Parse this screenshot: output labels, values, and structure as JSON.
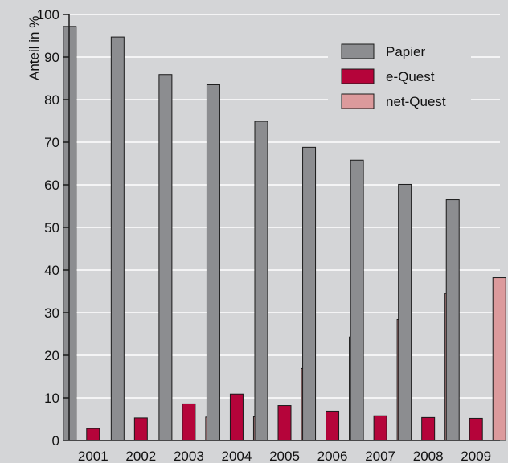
{
  "chart_data": {
    "type": "bar",
    "title": "",
    "xlabel": "",
    "ylabel": "Anteil in %",
    "ylim": [
      0,
      100
    ],
    "yticks": [
      0,
      10,
      20,
      30,
      40,
      50,
      60,
      70,
      80,
      90,
      100
    ],
    "grid": true,
    "legend_position": "top-right",
    "categories": [
      "2001",
      "2002",
      "2003",
      "2004",
      "2005",
      "2006",
      "2007",
      "2008",
      "2009"
    ],
    "series": [
      {
        "name": "Papier",
        "color": "#8c8d90",
        "values": [
          97.2,
          94.7,
          85.9,
          83.5,
          74.9,
          68.8,
          65.8,
          60.1,
          56.5
        ]
      },
      {
        "name": "e-Quest",
        "color": "#b5043a",
        "values": [
          2.8,
          5.3,
          8.6,
          10.9,
          8.2,
          6.9,
          5.8,
          5.4,
          5.2
        ]
      },
      {
        "name": "net-Quest",
        "color": "#dc9a9c",
        "values": [
          0,
          0,
          5.5,
          5.6,
          16.9,
          24.3,
          28.4,
          34.5,
          38.2
        ]
      }
    ]
  },
  "colors": {
    "background": "#d4d5d7",
    "gridline": "#ffffff",
    "axis": "#1a1a1a",
    "bar_stroke": "#1a1a1a"
  }
}
